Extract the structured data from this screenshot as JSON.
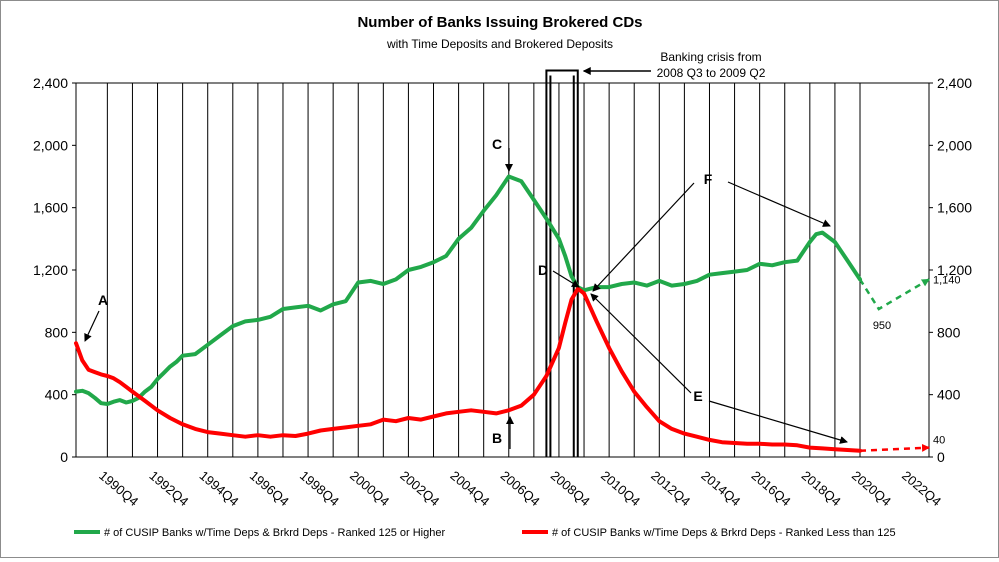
{
  "chart_data": {
    "type": "line",
    "title": "Number of Banks Issuing Brokered CDs",
    "subtitle": "with Time Deposits and Brokered Deposits",
    "ylim": [
      0,
      2400
    ],
    "yticks": [
      0,
      400,
      800,
      1200,
      1600,
      2000,
      2400
    ],
    "ytick_labels": [
      "0",
      "400",
      "800",
      "1,200",
      "1,600",
      "2,000",
      "2,400"
    ],
    "xlim": [
      1988.75,
      2022.75
    ],
    "x_tick_labels": [
      "1990Q4",
      "1992Q4",
      "1994Q4",
      "1996Q4",
      "1998Q4",
      "2000Q4",
      "2002Q4",
      "2004Q4",
      "2006Q4",
      "2008Q4",
      "2010Q4",
      "2012Q4",
      "2014Q4",
      "2016Q4",
      "2018Q4",
      "2020Q4",
      "2022Q4"
    ],
    "x_tick_values": [
      1990.75,
      1992.75,
      1994.75,
      1996.75,
      1998.75,
      2000.75,
      2002.75,
      2004.75,
      2006.75,
      2008.75,
      2010.75,
      2012.75,
      2014.75,
      2016.75,
      2018.75,
      2020.75,
      2022.75
    ],
    "gridlines_x": [
      1990,
      1991,
      1992,
      1993,
      1994,
      1995,
      1996,
      1997,
      1998,
      1999,
      2000,
      2001,
      2002,
      2003,
      2004,
      2005,
      2006,
      2007,
      2008,
      2009,
      2010,
      2011,
      2012,
      2013,
      2014,
      2015,
      2016,
      2017,
      2018,
      2019,
      2020
    ],
    "series": [
      {
        "name": "# of CUSIP Banks w/Time Deps & Brkrd Deps - Ranked 125 or Higher",
        "color": "#21a84a",
        "x": [
          1988.75,
          1989.0,
          1989.25,
          1989.5,
          1989.75,
          1990.0,
          1990.25,
          1990.5,
          1990.75,
          1991.0,
          1991.25,
          1991.5,
          1991.75,
          1992.0,
          1992.25,
          1992.5,
          1992.75,
          1993.0,
          1993.5,
          1994.0,
          1994.5,
          1995.0,
          1995.5,
          1996.0,
          1996.5,
          1997.0,
          1997.5,
          1998.0,
          1998.5,
          1999.0,
          1999.5,
          2000.0,
          2000.5,
          2001.0,
          2001.5,
          2002.0,
          2002.5,
          2003.0,
          2003.5,
          2004.0,
          2004.5,
          2005.0,
          2005.5,
          2006.0,
          2006.5,
          2007.0,
          2007.5,
          2008.0,
          2008.25,
          2008.5,
          2008.75,
          2009.0,
          2009.5,
          2010.0,
          2010.5,
          2011.0,
          2011.5,
          2012.0,
          2012.5,
          2013.0,
          2013.5,
          2014.0,
          2014.5,
          2015.0,
          2015.5,
          2016.0,
          2016.5,
          2017.0,
          2017.5,
          2018.0,
          2018.25,
          2018.5,
          2019.0,
          2019.5,
          2020.0
        ],
        "y": [
          420,
          425,
          410,
          380,
          345,
          340,
          355,
          365,
          350,
          360,
          380,
          420,
          450,
          500,
          540,
          580,
          610,
          650,
          660,
          720,
          780,
          840,
          870,
          880,
          900,
          950,
          960,
          970,
          940,
          980,
          1000,
          1120,
          1130,
          1110,
          1140,
          1200,
          1220,
          1250,
          1290,
          1400,
          1470,
          1580,
          1680,
          1800,
          1770,
          1650,
          1530,
          1400,
          1290,
          1160,
          1090,
          1070,
          1090,
          1090,
          1110,
          1120,
          1100,
          1130,
          1100,
          1110,
          1130,
          1170,
          1180,
          1190,
          1200,
          1240,
          1230,
          1250,
          1260,
          1380,
          1430,
          1440,
          1380,
          1260,
          1140
        ]
      },
      {
        "name": "# of CUSIP Banks w/Time Deps & Brkrd Deps -  Ranked Less than 125",
        "color": "#ff0000",
        "x": [
          1988.75,
          1989.0,
          1989.25,
          1989.5,
          1989.75,
          1990.0,
          1990.25,
          1990.5,
          1991.0,
          1991.5,
          1992.0,
          1992.5,
          1993.0,
          1993.5,
          1994.0,
          1994.5,
          1995.0,
          1995.5,
          1996.0,
          1996.5,
          1997.0,
          1997.5,
          1998.0,
          1998.5,
          1999.0,
          1999.5,
          2000.0,
          2000.5,
          2001.0,
          2001.5,
          2002.0,
          2002.5,
          2003.0,
          2003.5,
          2004.0,
          2004.5,
          2005.0,
          2005.5,
          2006.0,
          2006.5,
          2007.0,
          2007.5,
          2008.0,
          2008.25,
          2008.5,
          2008.75,
          2009.0,
          2009.5,
          2010.0,
          2010.5,
          2011.0,
          2011.5,
          2012.0,
          2012.5,
          2013.0,
          2013.5,
          2014.0,
          2014.5,
          2015.0,
          2015.5,
          2016.0,
          2016.5,
          2017.0,
          2017.5,
          2018.0,
          2018.5,
          2019.0,
          2019.5,
          2020.0
        ],
        "y": [
          730,
          620,
          560,
          545,
          530,
          520,
          505,
          480,
          420,
          360,
          300,
          250,
          210,
          180,
          160,
          150,
          140,
          130,
          140,
          130,
          140,
          135,
          150,
          170,
          180,
          190,
          200,
          210,
          240,
          230,
          250,
          240,
          260,
          280,
          290,
          300,
          290,
          280,
          300,
          330,
          400,
          520,
          700,
          860,
          1010,
          1080,
          1050,
          870,
          700,
          550,
          420,
          320,
          230,
          180,
          150,
          130,
          110,
          95,
          90,
          85,
          85,
          80,
          80,
          75,
          60,
          55,
          50,
          45,
          40
        ]
      }
    ],
    "projections": [
      {
        "color": "#21a84a",
        "x": [
          2020.0,
          2020.75,
          2022.75
        ],
        "y": [
          1140,
          950,
          1140
        ],
        "labels": [
          "950",
          "1,140"
        ]
      },
      {
        "color": "#ff0000",
        "x": [
          2020.0,
          2022.75
        ],
        "y": [
          40,
          60
        ],
        "labels": [
          "40"
        ]
      }
    ],
    "crisis": {
      "label_line1": "Banking crisis from",
      "label_line2": "2008 Q3 to 2009 Q2",
      "x_start": 2007.5,
      "x_end": 2008.75,
      "y_top": 2480
    },
    "annotations": [
      "A",
      "B",
      "C",
      "D",
      "E",
      "F"
    ],
    "legend_position": "bottom"
  }
}
